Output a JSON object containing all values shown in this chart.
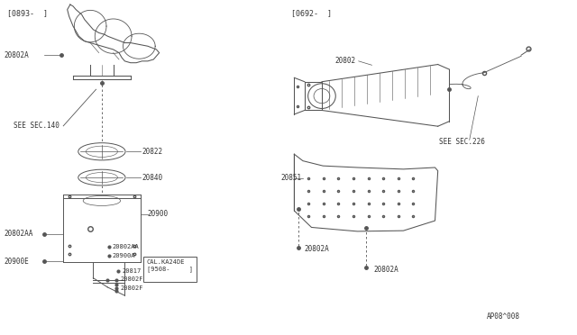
{
  "bg_color": "#ffffff",
  "line_color": "#555555",
  "text_color": "#333333",
  "fig_width": 6.4,
  "fig_height": 3.72,
  "dpi": 100,
  "left_bracket": "[0893-  ]",
  "right_bracket": "[0692-  ]",
  "diagram_code": "AP08^008"
}
